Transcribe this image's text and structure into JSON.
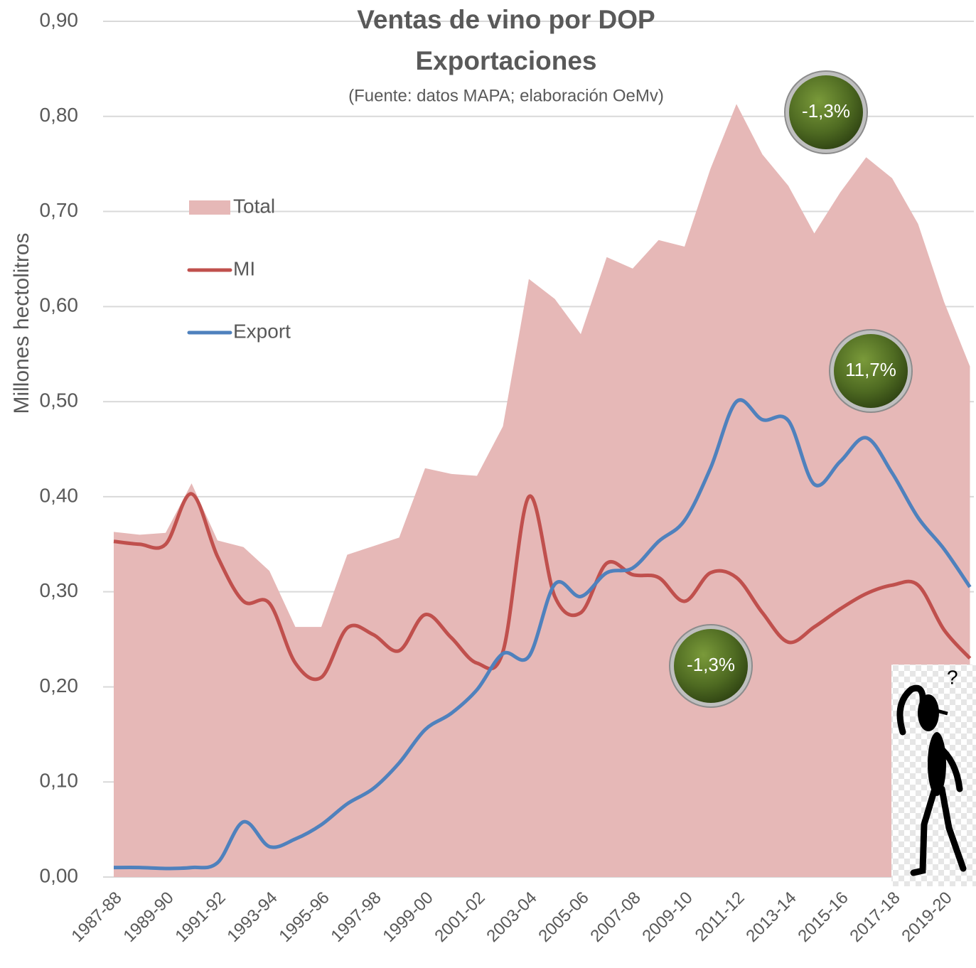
{
  "chart_data": {
    "type": "line",
    "title": "Ventas de vino por DOP",
    "subtitle": "Exportaciones",
    "source": "(Fuente: datos MAPA; elaboración OeMv)",
    "y_label": "Millones hectolitros",
    "categories": [
      "1987-88",
      null,
      "1989-90",
      null,
      "1991-92",
      null,
      "1993-94",
      null,
      "1995-96",
      null,
      "1997-98",
      null,
      "1999-00",
      null,
      "2001-02",
      null,
      "2003-04",
      null,
      "2005-06",
      null,
      "2007-08",
      null,
      "2009-10",
      null,
      "2011-12",
      null,
      "2013-14",
      null,
      "2015-16",
      null,
      "2017-18",
      null,
      "2019-20",
      null
    ],
    "series": [
      {
        "name": "Total",
        "type": "area",
        "color": "#e6b8b7",
        "values": [
          0.363,
          0.36,
          0.362,
          0.414,
          0.354,
          0.347,
          0.322,
          0.263,
          0.263,
          0.339,
          0.348,
          0.357,
          0.43,
          0.424,
          0.422,
          0.474,
          0.629,
          0.608,
          0.571,
          0.652,
          0.64,
          0.67,
          0.663,
          0.745,
          0.813,
          0.76,
          0.727,
          0.677,
          0.72,
          0.757,
          0.735,
          0.687,
          0.605,
          0.537
        ]
      },
      {
        "name": "MI",
        "type": "line",
        "color": "#c0504d",
        "values": [
          0.353,
          0.35,
          0.35,
          0.403,
          0.337,
          0.29,
          0.288,
          0.225,
          0.21,
          0.262,
          0.255,
          0.238,
          0.276,
          0.252,
          0.225,
          0.237,
          0.4,
          0.295,
          0.278,
          0.33,
          0.318,
          0.315,
          0.29,
          0.32,
          0.315,
          0.278,
          0.247,
          0.263,
          0.282,
          0.298,
          0.307,
          0.307,
          0.26,
          0.23
        ]
      },
      {
        "name": "Export",
        "type": "line",
        "color": "#4f81bd",
        "values": [
          0.01,
          0.01,
          0.009,
          0.01,
          0.015,
          0.058,
          0.032,
          0.04,
          0.055,
          0.077,
          0.093,
          0.12,
          0.155,
          0.172,
          0.197,
          0.235,
          0.232,
          0.308,
          0.295,
          0.32,
          0.325,
          0.353,
          0.375,
          0.43,
          0.5,
          0.481,
          0.48,
          0.413,
          0.437,
          0.462,
          0.425,
          0.378,
          0.345,
          0.305
        ]
      }
    ],
    "ylim": [
      0,
      0.9
    ],
    "yticks": [
      {
        "value": 0,
        "label": "0,00"
      },
      {
        "value": 0.1,
        "label": "0,10"
      },
      {
        "value": 0.2,
        "label": "0,20"
      },
      {
        "value": 0.3,
        "label": "0,30"
      },
      {
        "value": 0.4,
        "label": "0,40"
      },
      {
        "value": 0.5,
        "label": "0,50"
      },
      {
        "value": 0.6,
        "label": "0,60"
      },
      {
        "value": 0.7,
        "label": "0,70"
      },
      {
        "value": 0.8,
        "label": "0,80"
      },
      {
        "value": 0.9,
        "label": "0,90"
      }
    ],
    "grid": true,
    "annotations": [
      "-1,3%",
      "11,7%",
      "-1,3%"
    ]
  }
}
